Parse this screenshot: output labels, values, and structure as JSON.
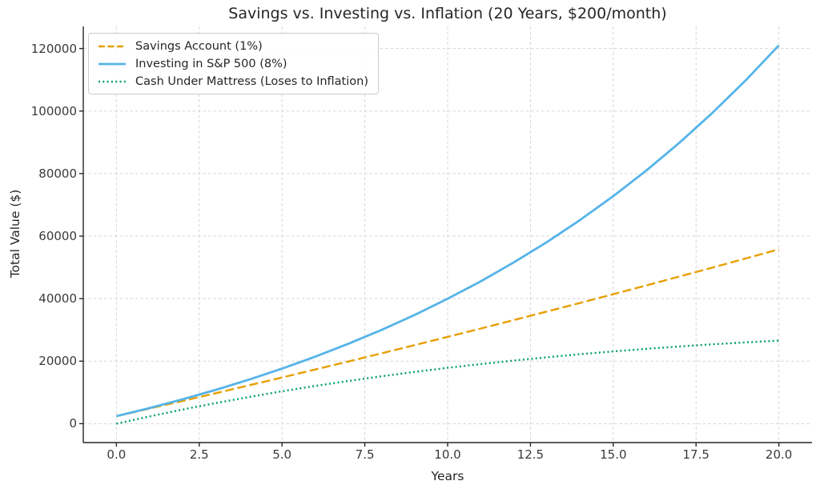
{
  "chart_data": {
    "type": "line",
    "title": "Savings vs. Investing vs. Inflation (20 Years, $200/month)",
    "xlabel": "Years",
    "ylabel": "Total Value ($)",
    "xlim": [
      -1,
      21
    ],
    "ylim": [
      -6050,
      127070
    ],
    "grid": true,
    "legend_position": "upper left",
    "x_ticks": [
      0,
      2.5,
      5,
      7.5,
      10,
      12.5,
      15,
      17.5,
      20
    ],
    "x_tick_labels": [
      "0.0",
      "2.5",
      "5.0",
      "7.5",
      "10.0",
      "12.5",
      "15.0",
      "17.5",
      "20.0"
    ],
    "y_ticks": [
      0,
      20000,
      40000,
      60000,
      80000,
      100000,
      120000
    ],
    "y_tick_labels": [
      "0",
      "20000",
      "40000",
      "60000",
      "80000",
      "100000",
      "120000"
    ],
    "x": [
      0,
      1,
      2,
      3,
      4,
      5,
      6,
      7,
      8,
      9,
      10,
      11,
      12,
      13,
      14,
      15,
      16,
      17,
      18,
      19,
      20
    ],
    "series": [
      {
        "name": "Savings Account (1%)",
        "color": "#E69F00",
        "style": "dashed",
        "values": [
          2400,
          4824,
          7272,
          9745,
          12242,
          14765,
          17312,
          19886,
          22484,
          25109,
          27760,
          30438,
          33142,
          35874,
          38633,
          41419,
          44233,
          47075,
          49946,
          52846,
          55774
        ]
      },
      {
        "name": "Investing in S&P 500 (8%)",
        "color": "#56B4E9",
        "style": "solid",
        "values": [
          2400,
          4992,
          7791,
          10815,
          14080,
          17606,
          21415,
          25528,
          29970,
          34768,
          39949,
          45545,
          51589,
          58116,
          65165,
          72778,
          81001,
          89881,
          99471,
          109829,
          121015
        ]
      },
      {
        "name": "Cash Under Mattress (Loses to Inflation)",
        "color": "#009E73",
        "style": "dotted",
        "values": [
          0,
          2330,
          4524,
          6589,
          8529,
          10351,
          12060,
          13660,
          15157,
          16555,
          17858,
          19072,
          20200,
          21246,
          22214,
          23107,
          23930,
          24685,
          25376,
          26005,
          26576
        ]
      }
    ],
    "colors": {
      "grid": "#d5d5d5",
      "axis": "#262626",
      "tick_text": "#3a3a3a",
      "legend_border": "#cccccc",
      "background": "#ffffff"
    }
  }
}
